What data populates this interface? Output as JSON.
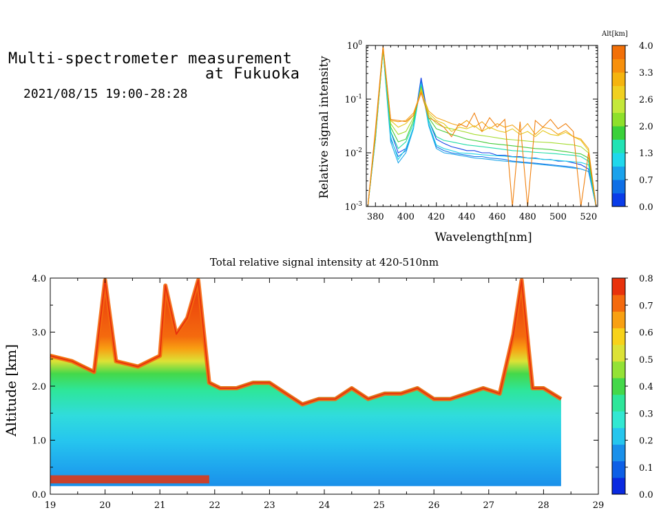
{
  "header": {
    "title_line1": "Multi-spectrometer measurement",
    "title_line2": "at Fukuoka",
    "period": "2021/08/15 19:00-28:28"
  },
  "chart_data": [
    {
      "type": "line",
      "xlabel": "Wavelength[nm]",
      "ylabel": "Relative signal intensity",
      "yscale": "log",
      "xlim": [
        374,
        526
      ],
      "ylim": [
        0.001,
        1
      ],
      "xticks": [
        "380",
        "400",
        "420",
        "440",
        "460",
        "480",
        "500",
        "520"
      ],
      "yticks": [
        {
          "mant": "10",
          "exp": "0"
        },
        {
          "mant": "10",
          "exp": "-1"
        },
        {
          "mant": "10",
          "exp": "-2"
        },
        {
          "mant": "10",
          "exp": "-3"
        }
      ],
      "x": [
        375,
        380,
        385,
        390,
        395,
        400,
        405,
        410,
        415,
        420,
        425,
        430,
        435,
        440,
        445,
        450,
        455,
        460,
        465,
        470,
        475,
        480,
        485,
        490,
        495,
        500,
        505,
        510,
        515,
        520,
        525
      ],
      "colorbar": {
        "title": "Alt[km]",
        "ticks": [
          "0.0",
          "0.7",
          "1.3",
          "2.0",
          "2.6",
          "3.3",
          "4.0"
        ],
        "colors": [
          "#0a3ce8",
          "#0e6fe6",
          "#1aa2ec",
          "#20d8ec",
          "#22e3b4",
          "#3ad13a",
          "#8ee02a",
          "#c4e83a",
          "#f0d020",
          "#f5b40e",
          "#f7900c",
          "#f27008"
        ]
      },
      "series": [
        {
          "color": "#1442e6",
          "values": [
            0.001,
            0.02,
            0.9,
            0.025,
            0.01,
            0.012,
            0.03,
            0.25,
            0.04,
            0.018,
            0.015,
            0.013,
            0.012,
            0.011,
            0.011,
            0.01,
            0.01,
            0.009,
            0.009,
            0.0085,
            0.0085,
            0.008,
            0.008,
            0.0075,
            0.0075,
            0.007,
            0.007,
            0.0065,
            0.006,
            0.005,
            0.001
          ]
        },
        {
          "color": "#1874e8",
          "values": [
            0.001,
            0.018,
            0.85,
            0.018,
            0.0085,
            0.011,
            0.03,
            0.22,
            0.035,
            0.013,
            0.011,
            0.01,
            0.0095,
            0.009,
            0.0085,
            0.0085,
            0.008,
            0.0078,
            0.0075,
            0.007,
            0.0068,
            0.0066,
            0.0064,
            0.0062,
            0.006,
            0.0058,
            0.0056,
            0.0054,
            0.005,
            0.0045,
            0.001
          ]
        },
        {
          "color": "#1ea6ea",
          "values": [
            0.001,
            0.018,
            0.8,
            0.016,
            0.0065,
            0.01,
            0.028,
            0.2,
            0.032,
            0.012,
            0.01,
            0.0095,
            0.009,
            0.0085,
            0.008,
            0.0078,
            0.0075,
            0.0072,
            0.007,
            0.0068,
            0.0066,
            0.0064,
            0.0062,
            0.006,
            0.0058,
            0.0056,
            0.0054,
            0.0052,
            0.005,
            0.0045,
            0.001
          ]
        },
        {
          "color": "#22d4e6",
          "values": [
            0.001,
            0.02,
            0.8,
            0.02,
            0.0075,
            0.012,
            0.03,
            0.19,
            0.035,
            0.014,
            0.012,
            0.011,
            0.01,
            0.0098,
            0.0095,
            0.0092,
            0.009,
            0.0088,
            0.0086,
            0.0084,
            0.0082,
            0.008,
            0.0078,
            0.0076,
            0.0074,
            0.0072,
            0.007,
            0.0068,
            0.0066,
            0.006,
            0.001
          ]
        },
        {
          "color": "#22dca8",
          "values": [
            0.001,
            0.02,
            0.8,
            0.025,
            0.012,
            0.016,
            0.035,
            0.18,
            0.04,
            0.02,
            0.017,
            0.016,
            0.015,
            0.014,
            0.0135,
            0.013,
            0.0125,
            0.012,
            0.0115,
            0.011,
            0.0108,
            0.0105,
            0.0102,
            0.01,
            0.0098,
            0.0095,
            0.0092,
            0.009,
            0.0085,
            0.007,
            0.001
          ]
        },
        {
          "color": "#44cc38",
          "values": [
            0.001,
            0.02,
            0.85,
            0.03,
            0.016,
            0.018,
            0.04,
            0.17,
            0.045,
            0.028,
            0.025,
            0.022,
            0.02,
            0.018,
            0.017,
            0.016,
            0.015,
            0.0145,
            0.014,
            0.0135,
            0.013,
            0.0125,
            0.012,
            0.0118,
            0.0115,
            0.011,
            0.0105,
            0.01,
            0.0095,
            0.008,
            0.001
          ]
        },
        {
          "color": "#a6dc30",
          "values": [
            0.001,
            0.022,
            0.9,
            0.035,
            0.022,
            0.025,
            0.045,
            0.16,
            0.05,
            0.035,
            0.03,
            0.028,
            0.026,
            0.024,
            0.022,
            0.021,
            0.02,
            0.019,
            0.018,
            0.0175,
            0.017,
            0.0165,
            0.016,
            0.0158,
            0.0155,
            0.015,
            0.0145,
            0.014,
            0.013,
            0.01,
            0.001
          ]
        },
        {
          "color": "#e6c81c",
          "values": [
            0.001,
            0.022,
            0.85,
            0.04,
            0.03,
            0.035,
            0.05,
            0.15,
            0.055,
            0.04,
            0.035,
            0.025,
            0.03,
            0.028,
            0.032,
            0.025,
            0.03,
            0.026,
            0.024,
            0.028,
            0.022,
            0.025,
            0.02,
            0.026,
            0.022,
            0.021,
            0.024,
            0.02,
            0.017,
            0.011,
            0.001
          ]
        },
        {
          "color": "#f4a414",
          "values": [
            0.001,
            0.025,
            0.95,
            0.04,
            0.038,
            0.04,
            0.055,
            0.14,
            0.06,
            0.045,
            0.04,
            0.035,
            0.032,
            0.04,
            0.03,
            0.038,
            0.028,
            0.035,
            0.03,
            0.033,
            0.025,
            0.035,
            0.022,
            0.03,
            0.028,
            0.022,
            0.026,
            0.02,
            0.018,
            0.012,
            0.001
          ]
        },
        {
          "color": "#f07f0c",
          "values": [
            0.001,
            0.028,
            0.98,
            0.042,
            0.04,
            0.038,
            0.05,
            0.13,
            0.045,
            0.038,
            0.03,
            0.02,
            0.035,
            0.03,
            0.055,
            0.025,
            0.045,
            0.03,
            0.042,
            0.001,
            0.038,
            0.001,
            0.04,
            0.03,
            0.042,
            0.028,
            0.035,
            0.025,
            0.001,
            0.01,
            0.001
          ]
        }
      ]
    },
    {
      "type": "heatmap",
      "title": "Total relative signal intensity at 420-510nm",
      "xlabel": "",
      "ylabel": "Altitude [km]",
      "xlim": [
        19,
        29
      ],
      "ylim": [
        0.0,
        4.0
      ],
      "xticks": [
        "19",
        "20",
        "21",
        "22",
        "23",
        "24",
        "25",
        "26",
        "27",
        "28",
        "29"
      ],
      "yticks": [
        "0.0",
        "1.0",
        "2.0",
        "3.0",
        "4.0"
      ],
      "data_extent": {
        "x": [
          19,
          28.32
        ],
        "y": [
          0.15,
          4.0
        ]
      },
      "colorbar": {
        "ticks": [
          "0.0",
          "0.1",
          "0.2",
          "0.3",
          "0.4",
          "0.5",
          "0.6",
          "0.7",
          "0.8"
        ],
        "vmin": 0.0,
        "vmax": 0.8,
        "colors": [
          "#0a2ae0",
          "#0d5fe6",
          "#1a90ea",
          "#26c6ee",
          "#32e8d2",
          "#2ee69a",
          "#44d84a",
          "#94e236",
          "#dce236",
          "#f7d21a",
          "#f8a012",
          "#f46a0e",
          "#e8320c"
        ]
      },
      "profile_x": [
        19.0,
        19.4,
        19.8,
        20.0,
        20.2,
        20.6,
        21.0,
        21.1,
        21.3,
        21.5,
        21.7,
        21.9,
        22.1,
        22.4,
        22.7,
        23.0,
        23.3,
        23.6,
        23.9,
        24.2,
        24.5,
        24.8,
        25.1,
        25.4,
        25.7,
        26.0,
        26.3,
        26.6,
        26.9,
        27.2,
        27.45,
        27.6,
        27.8,
        28.0,
        28.32
      ],
      "profile_alt": [
        2.6,
        2.5,
        2.3,
        4.0,
        2.5,
        2.4,
        2.6,
        3.9,
        3.0,
        3.3,
        4.0,
        2.1,
        2.0,
        2.0,
        2.1,
        2.1,
        1.9,
        1.7,
        1.8,
        1.8,
        2.0,
        1.8,
        1.9,
        1.9,
        2.0,
        1.8,
        1.8,
        1.9,
        2.0,
        1.9,
        3.0,
        4.0,
        2.0,
        2.0,
        1.8
      ]
    }
  ]
}
